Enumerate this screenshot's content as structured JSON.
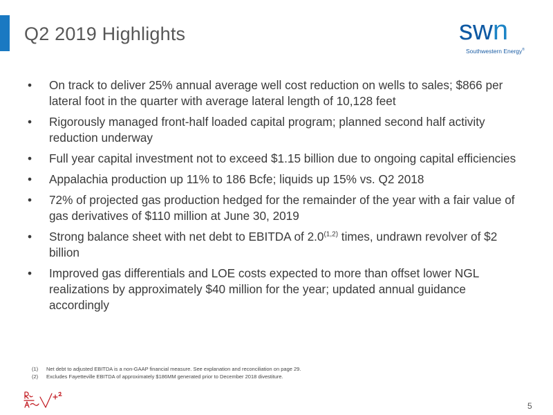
{
  "slide": {
    "title": "Q2 2019 Highlights",
    "page_number": "5"
  },
  "logo": {
    "word_prefix": "sw",
    "word_suffix": "n",
    "tagline": "Southwestern Energy",
    "tagline_mark": "®"
  },
  "bullets": [
    {
      "text": "On track to deliver 25% annual average well cost reduction on wells to sales; $866 per lateral foot in the quarter with average lateral length of 10,128 feet"
    },
    {
      "text": "Rigorously managed front-half loaded capital program; planned second half activity reduction underway"
    },
    {
      "text": "Full year capital investment not to exceed $1.15 billion due to ongoing capital efficiencies"
    },
    {
      "text": "Appalachia production up 11% to 186 Bcfe; liquids up 15% vs. Q2 2018"
    },
    {
      "text": "72% of projected gas production hedged for the remainder of the year with a fair value of gas derivatives of $110 million at June 30, 2019"
    },
    {
      "before": "Strong balance sheet with net debt to EBITDA of 2.0",
      "sup": "(1,2)",
      "after": " times, undrawn revolver of $2 billion"
    },
    {
      "text": "Improved gas differentials and LOE costs expected to more than offset lower NGL realizations by approximately $40 million for the year; updated annual guidance accordingly"
    }
  ],
  "bullet_symbol": "•",
  "footnotes": [
    {
      "num": "(1)",
      "text": "Net debt to adjusted EBITDA is a non-GAAP financial measure.  See explanation and reconciliation on page 29."
    },
    {
      "num": "(2)",
      "text": "Excludes Fayetteville EBITDA of approximately $186MM generated prior to December 2018 divestiture."
    }
  ],
  "colors": {
    "accent": "#1a79c2",
    "logo_dark": "#0e59a3",
    "logo_light": "#1c84c6",
    "signature": "#c0161d"
  },
  "signature": {
    "kind": "decorative-handwritten-mark"
  }
}
